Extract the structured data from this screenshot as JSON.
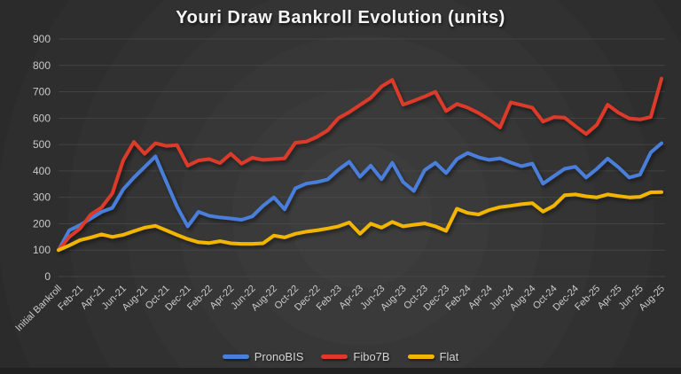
{
  "chart_data": {
    "type": "line",
    "title": "Youri Draw Bankroll Evolution (units)",
    "ylabel": "",
    "xlabel": "",
    "ylim": [
      0,
      900
    ],
    "y_tick_step": 100,
    "grid": "horizontal",
    "legend_position": "bottom",
    "points_per_label": 2,
    "x_tick_labels": [
      "Initial Bankroll",
      "Feb-21",
      "Apr-21",
      "Jun-21",
      "Aug-21",
      "Oct-21",
      "Dec-21",
      "Feb-22",
      "Apr-22",
      "Jun-22",
      "Aug-22",
      "Oct-22",
      "Dec-22",
      "Feb-23",
      "Apr-23",
      "Jun-23",
      "Aug-23",
      "Oct-23",
      "Dec-23",
      "Feb-24",
      "Apr-24",
      "Jun-24",
      "Aug-24",
      "Oct-24",
      "Dec-24",
      "Feb-25",
      "Apr-25",
      "Jun-25",
      "Aug-25"
    ],
    "series": [
      {
        "name": "PronoBIS",
        "color": "#4a7fdb",
        "values": [
          100,
          175,
          195,
          220,
          245,
          260,
          330,
          375,
          415,
          455,
          360,
          265,
          190,
          245,
          230,
          224,
          220,
          215,
          228,
          268,
          300,
          255,
          334,
          352,
          358,
          368,
          405,
          435,
          378,
          420,
          369,
          431,
          358,
          324,
          403,
          431,
          392,
          445,
          468,
          452,
          442,
          448,
          432,
          418,
          428,
          352,
          380,
          408,
          416,
          375,
          408,
          447,
          414,
          375,
          386,
          470,
          505
        ]
      },
      {
        "name": "Fibo7B",
        "color": "#dd3a2b",
        "values": [
          100,
          150,
          182,
          235,
          262,
          315,
          440,
          510,
          465,
          505,
          495,
          498,
          420,
          440,
          445,
          430,
          465,
          428,
          450,
          442,
          445,
          448,
          507,
          511,
          529,
          554,
          600,
          623,
          650,
          677,
          720,
          745,
          651,
          666,
          682,
          700,
          627,
          654,
          640,
          620,
          595,
          565,
          660,
          650,
          640,
          587,
          604,
          602,
          570,
          540,
          575,
          651,
          621,
          599,
          595,
          604,
          750
        ]
      },
      {
        "name": "Flat",
        "color": "#f2b600",
        "values": [
          100,
          118,
          138,
          148,
          160,
          150,
          158,
          172,
          185,
          192,
          175,
          158,
          142,
          130,
          127,
          134,
          126,
          124,
          124,
          126,
          155,
          148,
          162,
          170,
          175,
          182,
          190,
          205,
          162,
          200,
          185,
          207,
          190,
          196,
          201,
          190,
          173,
          257,
          241,
          235,
          252,
          263,
          268,
          274,
          278,
          246,
          268,
          308,
          311,
          304,
          300,
          311,
          305,
          300,
          302,
          319,
          320
        ]
      }
    ]
  }
}
